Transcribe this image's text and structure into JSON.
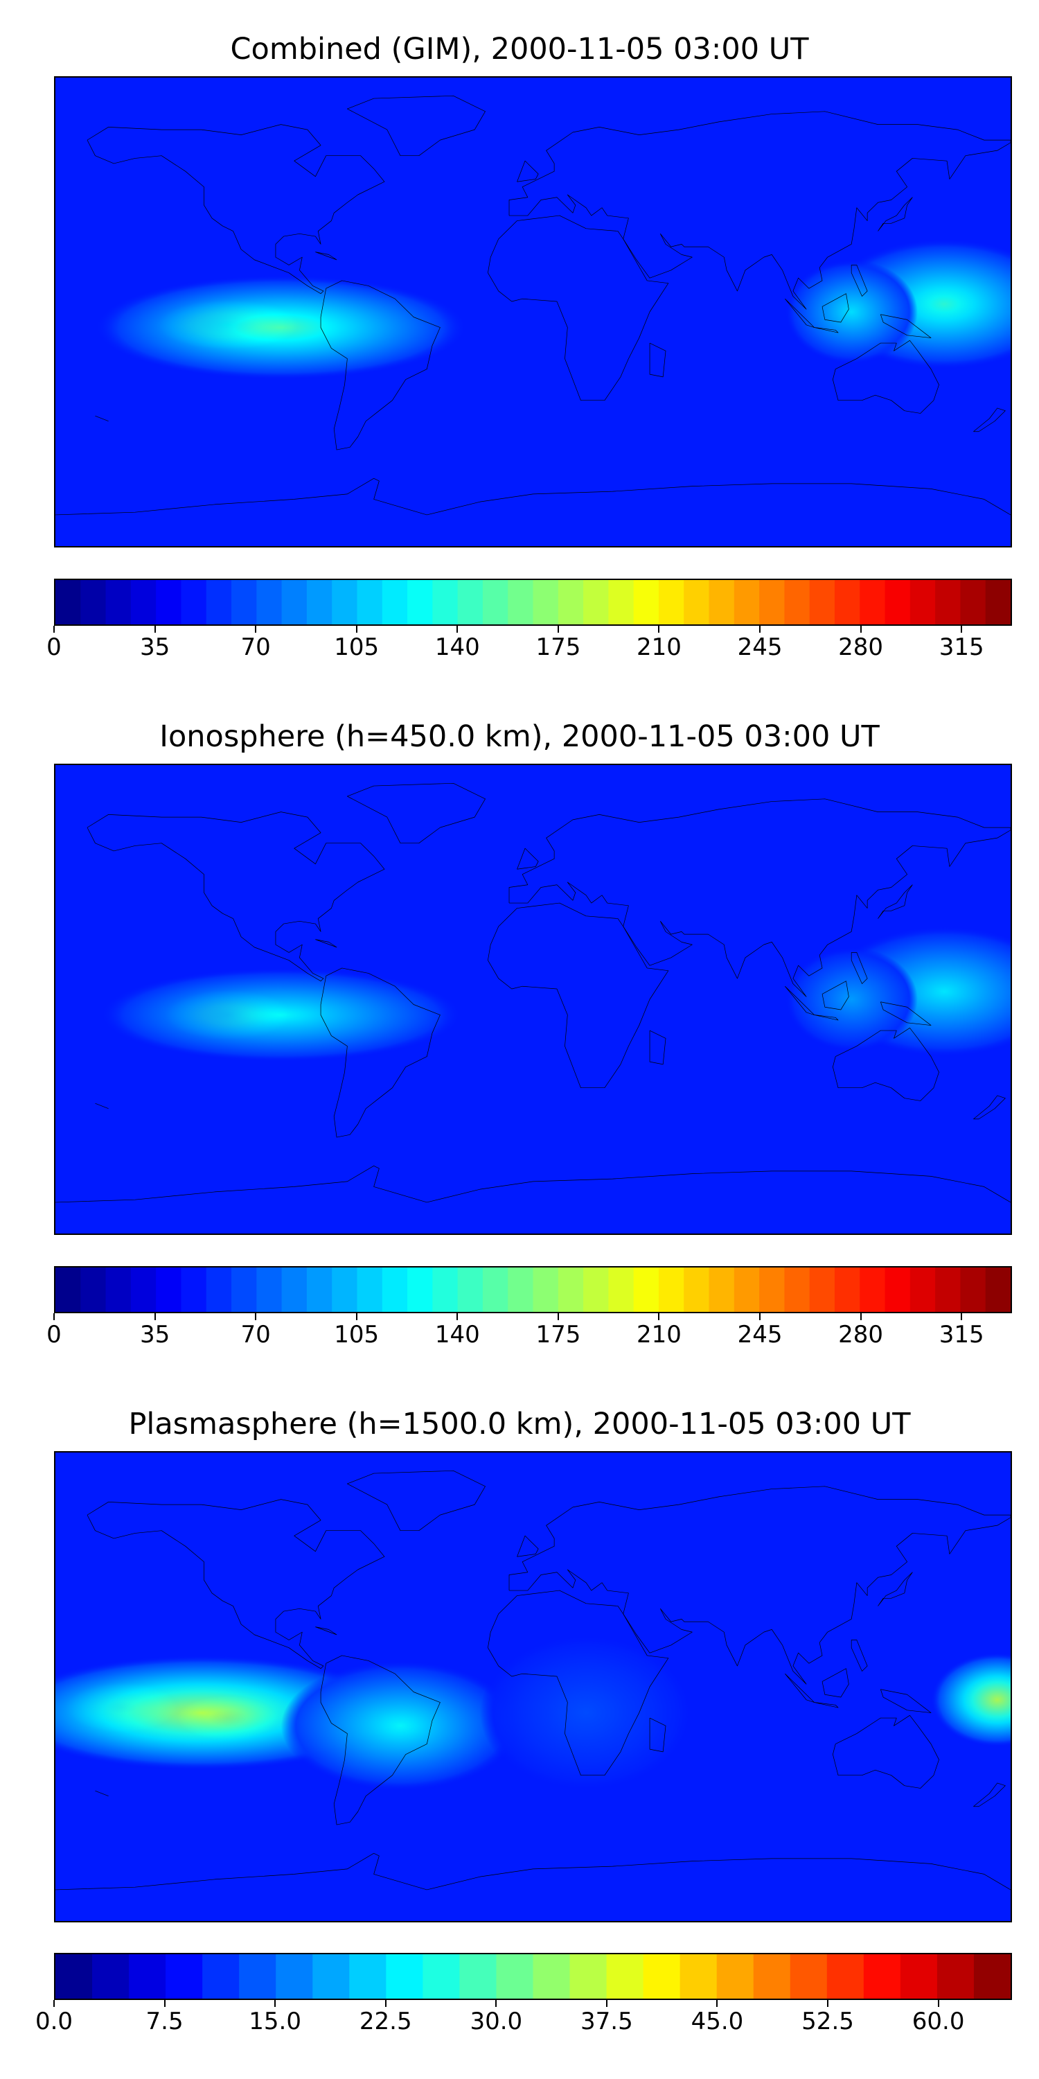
{
  "panels": [
    {
      "id": "combined",
      "title": "Combined (GIM), 2000-11-05 03:00 UT",
      "colorbar": {
        "min": 0,
        "max": 332.5,
        "step": 35,
        "ticks": [
          "0",
          "35",
          "70",
          "105",
          "140",
          "175",
          "210",
          "245",
          "280",
          "315"
        ],
        "tick_values": [
          0,
          35,
          70,
          105,
          140,
          175,
          210,
          245,
          280,
          315
        ],
        "levels": 38
      },
      "features": [
        {
          "name": "east-pacific-maximum",
          "lon": -115,
          "lat": -5,
          "level": 1.0,
          "rx": 28,
          "ry": 10
        },
        {
          "name": "east-pacific-band",
          "lon": -95,
          "lat": -6,
          "level": 0.45,
          "rx": 70,
          "ry": 20
        },
        {
          "name": "west-pacific-band",
          "lon": 155,
          "lat": 3,
          "level": 0.42,
          "rx": 45,
          "ry": 25
        },
        {
          "name": "indonesia-band",
          "lon": 120,
          "lat": 0,
          "level": 0.35,
          "rx": 25,
          "ry": 20
        }
      ]
    },
    {
      "id": "ionosphere",
      "title": "Ionosphere  (h=450.0 km), 2000-11-05 03:00 UT",
      "colorbar": {
        "min": 0,
        "max": 332.5,
        "step": 35,
        "ticks": [
          "0",
          "35",
          "70",
          "105",
          "140",
          "175",
          "210",
          "245",
          "280",
          "315"
        ],
        "tick_values": [
          0,
          35,
          70,
          105,
          140,
          175,
          210,
          245,
          280,
          315
        ],
        "levels": 38
      },
      "features": [
        {
          "name": "east-pacific-maximum",
          "lon": -115,
          "lat": -6,
          "level": 0.86,
          "rx": 25,
          "ry": 10
        },
        {
          "name": "east-pacific-band",
          "lon": -95,
          "lat": -6,
          "level": 0.38,
          "rx": 68,
          "ry": 18
        },
        {
          "name": "west-pacific-band",
          "lon": 155,
          "lat": 3,
          "level": 0.36,
          "rx": 45,
          "ry": 25
        },
        {
          "name": "indonesia-band",
          "lon": 120,
          "lat": 0,
          "level": 0.28,
          "rx": 25,
          "ry": 20
        }
      ]
    },
    {
      "id": "plasmasphere",
      "title": "Plasmasphere (h=1500.0 km), 2000-11-05 03:00 UT",
      "colorbar": {
        "min": 0,
        "max": 65,
        "step": 2.5,
        "ticks": [
          "0.0",
          "7.5",
          "15.0",
          "22.5",
          "30.0",
          "37.5",
          "45.0",
          "52.5",
          "60.0"
        ],
        "tick_values": [
          0,
          7.5,
          15,
          22.5,
          30,
          37.5,
          45,
          52.5,
          60
        ],
        "levels": 26
      },
      "features": [
        {
          "name": "east-pacific-maximum",
          "lon": -115,
          "lat": -12,
          "level": 0.9,
          "rx": 20,
          "ry": 9
        },
        {
          "name": "central-pacific-maximum",
          "lon": -155,
          "lat": -8,
          "level": 0.8,
          "rx": 22,
          "ry": 10
        },
        {
          "name": "pacific-band",
          "lon": -125,
          "lat": -10,
          "level": 0.55,
          "rx": 75,
          "ry": 22
        },
        {
          "name": "atlantic-band",
          "lon": -50,
          "lat": -15,
          "level": 0.38,
          "rx": 45,
          "ry": 25
        },
        {
          "name": "west-pacific-band",
          "lon": 175,
          "lat": -5,
          "level": 0.55,
          "rx": 25,
          "ry": 18
        },
        {
          "name": "africa-band",
          "lon": 20,
          "lat": -10,
          "level": 0.2,
          "rx": 40,
          "ry": 30
        }
      ]
    }
  ],
  "colormap": "jet"
}
